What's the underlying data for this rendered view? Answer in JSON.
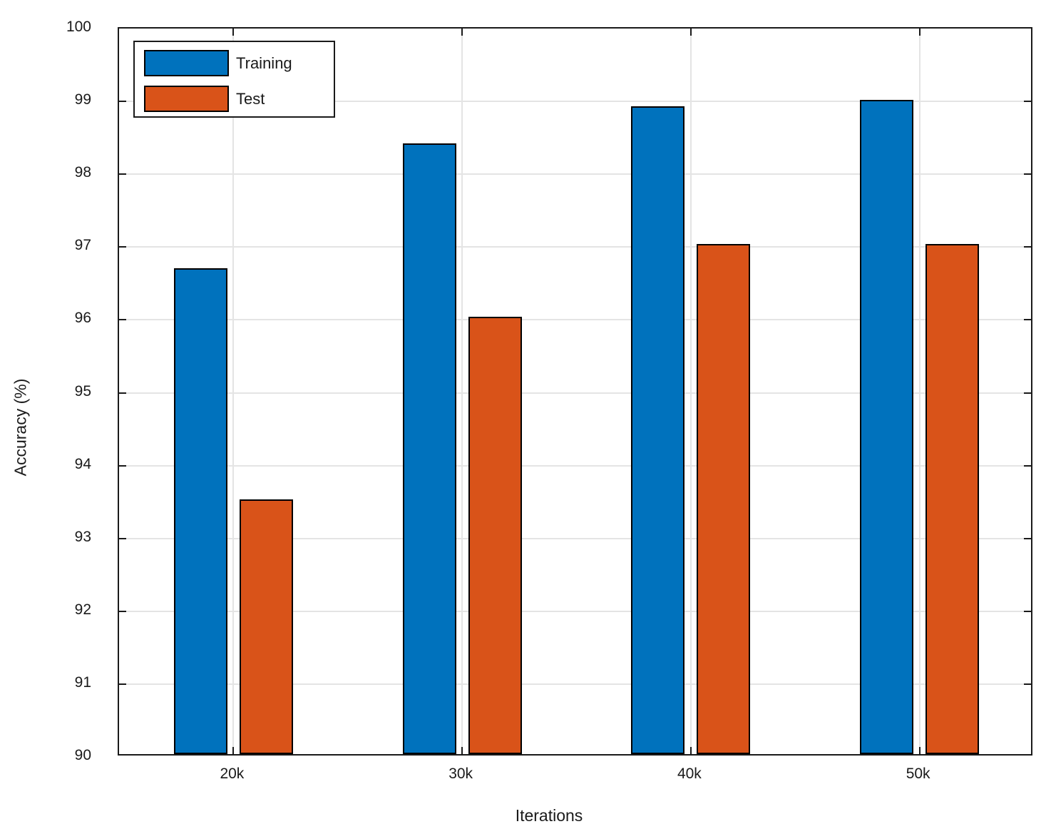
{
  "chart_data": {
    "type": "bar",
    "title": "",
    "categories": [
      "20k",
      "30k",
      "40k",
      "50k"
    ],
    "series": [
      {
        "name": "Training",
        "color": "#0072BD",
        "values": [
          96.67,
          98.38,
          98.89,
          98.98
        ]
      },
      {
        "name": "Test",
        "color": "#D95319",
        "values": [
          93.5,
          96.0,
          97.0,
          97.0
        ]
      }
    ],
    "xlabel": "Iterations",
    "ylabel": "Accuracy (%)",
    "ylim": [
      90,
      100
    ],
    "yticks": [
      90,
      91,
      92,
      93,
      94,
      95,
      96,
      97,
      98,
      99,
      100
    ],
    "grid": true,
    "legend_position": "top-left",
    "bar_edge_color": "#000000",
    "axis_color": "#1a1a1a",
    "grid_color": "#e4e4e4",
    "background": "#ffffff"
  }
}
